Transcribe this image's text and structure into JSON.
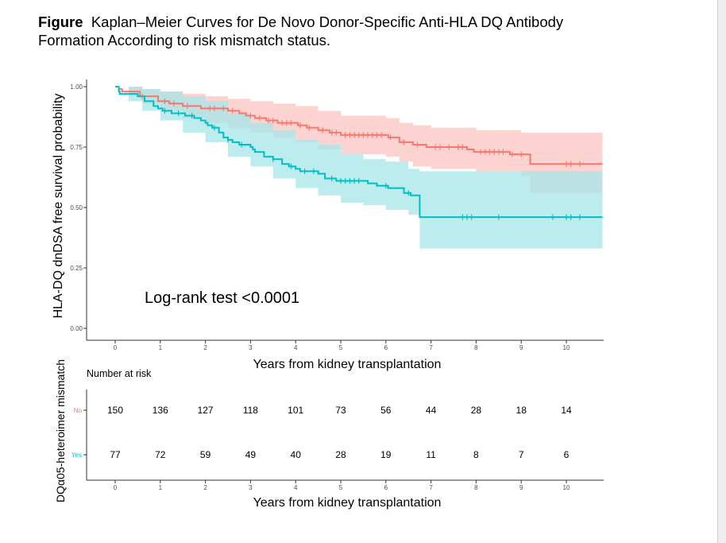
{
  "caption": {
    "label": "Figure",
    "text": "Kaplan–Meier Curves for De Novo Donor-Specific Anti-HLA DQ Antibody Formation According to risk mismatch status."
  },
  "colors": {
    "no": "#f8766d",
    "yes": "#00bfc4",
    "no_band": "#fbc4c0",
    "yes_band": "#a6e6e8"
  },
  "chart_data": [
    {
      "type": "line",
      "subtype": "kaplan-meier",
      "xlabel": "Years from kidney transplantation",
      "ylabel": "HLA-DQ dnDSA free survival probability",
      "x_ticks": [
        "0",
        "1",
        "2",
        "3",
        "4",
        "5",
        "6",
        "7",
        "8",
        "9",
        "10"
      ],
      "y_ticks": [
        "0.00",
        "0.25",
        "0.50",
        "0.75",
        "1.00"
      ],
      "xlim": [
        -0.3,
        10.8
      ],
      "ylim": [
        0,
        1.02
      ],
      "annotation": "Log-rank test <0.0001",
      "series": [
        {
          "name": "No",
          "color": "#f8766d",
          "band": "#fbc4c0",
          "steps": [
            [
              0,
              1.0
            ],
            [
              0.08,
              0.99
            ],
            [
              0.15,
              0.98
            ],
            [
              0.55,
              0.96
            ],
            [
              0.95,
              0.94
            ],
            [
              1.2,
              0.93
            ],
            [
              1.5,
              0.92
            ],
            [
              1.9,
              0.91
            ],
            [
              2.5,
              0.9
            ],
            [
              2.75,
              0.89
            ],
            [
              2.9,
              0.88
            ],
            [
              3.1,
              0.87
            ],
            [
              3.35,
              0.86
            ],
            [
              3.6,
              0.85
            ],
            [
              4.05,
              0.84
            ],
            [
              4.25,
              0.83
            ],
            [
              4.5,
              0.82
            ],
            [
              4.75,
              0.81
            ],
            [
              5.0,
              0.8
            ],
            [
              6.05,
              0.79
            ],
            [
              6.3,
              0.77
            ],
            [
              6.6,
              0.76
            ],
            [
              6.9,
              0.75
            ],
            [
              7.8,
              0.74
            ],
            [
              7.95,
              0.73
            ],
            [
              8.75,
              0.72
            ],
            [
              9.2,
              0.68
            ],
            [
              10.8,
              0.68
            ]
          ],
          "lower": [
            [
              0,
              1.0
            ],
            [
              0.3,
              0.96
            ],
            [
              0.6,
              0.93
            ],
            [
              1.0,
              0.9
            ],
            [
              1.5,
              0.87
            ],
            [
              2.0,
              0.85
            ],
            [
              2.5,
              0.83
            ],
            [
              3.0,
              0.81
            ],
            [
              3.5,
              0.79
            ],
            [
              4.0,
              0.77
            ],
            [
              4.5,
              0.74
            ],
            [
              5.0,
              0.72
            ],
            [
              6.0,
              0.71
            ],
            [
              6.3,
              0.69
            ],
            [
              6.6,
              0.67
            ],
            [
              7.0,
              0.66
            ],
            [
              8.0,
              0.65
            ],
            [
              9.0,
              0.63
            ],
            [
              9.2,
              0.56
            ],
            [
              10.8,
              0.56
            ]
          ],
          "upper": [
            [
              0,
              1.0
            ],
            [
              0.3,
              1.0
            ],
            [
              0.6,
              0.99
            ],
            [
              1.0,
              0.98
            ],
            [
              1.5,
              0.97
            ],
            [
              2.0,
              0.96
            ],
            [
              2.5,
              0.95
            ],
            [
              3.0,
              0.94
            ],
            [
              3.5,
              0.93
            ],
            [
              4.0,
              0.92
            ],
            [
              4.5,
              0.9
            ],
            [
              5.0,
              0.88
            ],
            [
              6.0,
              0.87
            ],
            [
              6.3,
              0.85
            ],
            [
              6.6,
              0.84
            ],
            [
              7.0,
              0.83
            ],
            [
              8.0,
              0.82
            ],
            [
              9.0,
              0.81
            ],
            [
              9.2,
              0.81
            ],
            [
              10.8,
              0.81
            ]
          ],
          "censored": [
            [
              0.6,
              0.96
            ],
            [
              1.1,
              0.94
            ],
            [
              1.3,
              0.93
            ],
            [
              1.6,
              0.92
            ],
            [
              2.1,
              0.91
            ],
            [
              2.2,
              0.91
            ],
            [
              2.4,
              0.91
            ],
            [
              2.6,
              0.9
            ],
            [
              3.0,
              0.88
            ],
            [
              3.2,
              0.87
            ],
            [
              3.4,
              0.86
            ],
            [
              3.5,
              0.86
            ],
            [
              3.7,
              0.85
            ],
            [
              3.8,
              0.85
            ],
            [
              3.9,
              0.85
            ],
            [
              4.1,
              0.84
            ],
            [
              4.3,
              0.83
            ],
            [
              4.6,
              0.82
            ],
            [
              4.8,
              0.81
            ],
            [
              4.9,
              0.81
            ],
            [
              5.1,
              0.8
            ],
            [
              5.2,
              0.8
            ],
            [
              5.3,
              0.8
            ],
            [
              5.4,
              0.8
            ],
            [
              5.5,
              0.8
            ],
            [
              5.6,
              0.8
            ],
            [
              5.7,
              0.8
            ],
            [
              5.8,
              0.8
            ],
            [
              5.9,
              0.8
            ],
            [
              6.1,
              0.79
            ],
            [
              6.4,
              0.77
            ],
            [
              6.7,
              0.76
            ],
            [
              7.1,
              0.75
            ],
            [
              7.2,
              0.75
            ],
            [
              7.4,
              0.75
            ],
            [
              7.6,
              0.75
            ],
            [
              7.7,
              0.75
            ],
            [
              8.1,
              0.73
            ],
            [
              8.2,
              0.73
            ],
            [
              8.3,
              0.73
            ],
            [
              8.4,
              0.73
            ],
            [
              8.5,
              0.73
            ],
            [
              8.6,
              0.73
            ],
            [
              8.8,
              0.72
            ],
            [
              9.0,
              0.72
            ],
            [
              10.0,
              0.68
            ],
            [
              10.1,
              0.68
            ],
            [
              10.3,
              0.68
            ]
          ]
        },
        {
          "name": "Yes",
          "color": "#00bfc4",
          "band": "#a6e6e8",
          "steps": [
            [
              0,
              1.0
            ],
            [
              0.08,
              0.98
            ],
            [
              0.1,
              0.97
            ],
            [
              0.5,
              0.96
            ],
            [
              0.65,
              0.94
            ],
            [
              0.85,
              0.92
            ],
            [
              0.95,
              0.91
            ],
            [
              1.05,
              0.9
            ],
            [
              1.25,
              0.89
            ],
            [
              1.55,
              0.88
            ],
            [
              1.75,
              0.87
            ],
            [
              1.9,
              0.86
            ],
            [
              2.0,
              0.85
            ],
            [
              2.05,
              0.84
            ],
            [
              2.15,
              0.83
            ],
            [
              2.3,
              0.81
            ],
            [
              2.4,
              0.79
            ],
            [
              2.5,
              0.78
            ],
            [
              2.6,
              0.77
            ],
            [
              2.75,
              0.76
            ],
            [
              3.0,
              0.75
            ],
            [
              3.05,
              0.74
            ],
            [
              3.1,
              0.73
            ],
            [
              3.3,
              0.71
            ],
            [
              3.5,
              0.7
            ],
            [
              3.7,
              0.68
            ],
            [
              3.85,
              0.67
            ],
            [
              4.0,
              0.66
            ],
            [
              4.1,
              0.65
            ],
            [
              4.5,
              0.64
            ],
            [
              4.65,
              0.62
            ],
            [
              4.9,
              0.61
            ],
            [
              5.6,
              0.6
            ],
            [
              5.8,
              0.59
            ],
            [
              6.05,
              0.58
            ],
            [
              6.4,
              0.56
            ],
            [
              6.55,
              0.55
            ],
            [
              6.75,
              0.46
            ],
            [
              10.8,
              0.46
            ]
          ],
          "lower": [
            [
              0,
              1.0
            ],
            [
              0.3,
              0.94
            ],
            [
              0.6,
              0.9
            ],
            [
              1.0,
              0.86
            ],
            [
              1.5,
              0.81
            ],
            [
              2.0,
              0.77
            ],
            [
              2.5,
              0.71
            ],
            [
              3.0,
              0.67
            ],
            [
              3.5,
              0.62
            ],
            [
              4.0,
              0.58
            ],
            [
              4.5,
              0.55
            ],
            [
              5.0,
              0.52
            ],
            [
              5.5,
              0.51
            ],
            [
              6.0,
              0.49
            ],
            [
              6.5,
              0.47
            ],
            [
              6.75,
              0.33
            ],
            [
              10.8,
              0.33
            ]
          ],
          "upper": [
            [
              0,
              1.0
            ],
            [
              0.3,
              1.0
            ],
            [
              0.6,
              0.99
            ],
            [
              1.0,
              0.98
            ],
            [
              1.5,
              0.96
            ],
            [
              2.0,
              0.94
            ],
            [
              2.5,
              0.89
            ],
            [
              3.0,
              0.85
            ],
            [
              3.5,
              0.82
            ],
            [
              4.0,
              0.78
            ],
            [
              4.5,
              0.76
            ],
            [
              5.0,
              0.72
            ],
            [
              5.5,
              0.7
            ],
            [
              6.0,
              0.69
            ],
            [
              6.5,
              0.66
            ],
            [
              6.75,
              0.65
            ],
            [
              10.8,
              0.65
            ]
          ],
          "censored": [
            [
              1.1,
              0.9
            ],
            [
              1.4,
              0.89
            ],
            [
              1.7,
              0.88
            ],
            [
              2.2,
              0.83
            ],
            [
              2.5,
              0.78
            ],
            [
              2.8,
              0.76
            ],
            [
              3.5,
              0.7
            ],
            [
              3.9,
              0.67
            ],
            [
              4.2,
              0.65
            ],
            [
              4.4,
              0.65
            ],
            [
              4.8,
              0.62
            ],
            [
              5.0,
              0.61
            ],
            [
              5.1,
              0.61
            ],
            [
              5.2,
              0.61
            ],
            [
              5.3,
              0.61
            ],
            [
              5.4,
              0.61
            ],
            [
              6.0,
              0.59
            ],
            [
              6.5,
              0.56
            ],
            [
              7.7,
              0.46
            ],
            [
              7.8,
              0.46
            ],
            [
              7.9,
              0.46
            ],
            [
              8.5,
              0.46
            ],
            [
              9.7,
              0.46
            ],
            [
              10.0,
              0.46
            ],
            [
              10.1,
              0.46
            ],
            [
              10.3,
              0.46
            ]
          ]
        }
      ]
    },
    {
      "type": "table",
      "title": "Number at risk",
      "xlabel": "Years from kidney transplantation",
      "ylabel": "DQα05-heteroimer mismatch",
      "x_ticks": [
        "0",
        "1",
        "2",
        "3",
        "4",
        "5",
        "6",
        "7",
        "8",
        "9",
        "10"
      ],
      "rows": [
        {
          "name": "No",
          "color": "#f8766d",
          "values": [
            "150",
            "136",
            "127",
            "118",
            "101",
            "73",
            "56",
            "44",
            "28",
            "18",
            "14"
          ]
        },
        {
          "name": "Yes",
          "color": "#00bfc4",
          "values": [
            "77",
            "72",
            "59",
            "49",
            "40",
            "28",
            "19",
            "11",
            "8",
            "7",
            "6"
          ]
        }
      ]
    }
  ]
}
